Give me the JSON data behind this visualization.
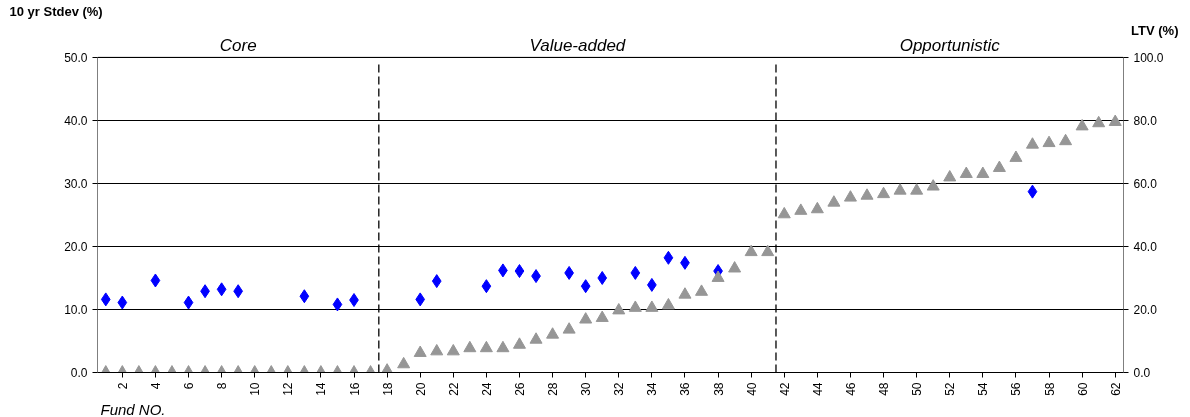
{
  "chart_data": {
    "type": "scatter",
    "ylabel": "10 yr Stdev (%)",
    "y2label": "LTV (%)",
    "xlabel": "Fund NO.",
    "annotations": [
      "Core",
      "Value-added",
      "Opportunistic"
    ],
    "x": [
      1,
      2,
      3,
      4,
      5,
      6,
      7,
      8,
      9,
      10,
      11,
      12,
      13,
      14,
      15,
      16,
      17,
      18,
      19,
      20,
      21,
      22,
      23,
      24,
      25,
      26,
      27,
      28,
      29,
      30,
      31,
      32,
      33,
      34,
      35,
      36,
      37,
      38,
      39,
      40,
      41,
      42,
      43,
      44,
      45,
      46,
      47,
      48,
      49,
      50,
      51,
      52,
      53,
      54,
      55,
      56,
      57,
      58,
      59,
      60,
      61,
      62
    ],
    "series": [
      {
        "color": "#0000ff",
        "marker": "diamond",
        "values": [
          11.6,
          11.1,
          null,
          14.6,
          null,
          11.1,
          12.9,
          13.2,
          12.9,
          null,
          null,
          null,
          12.1,
          null,
          10.8,
          11.5,
          null,
          null,
          null,
          11.6,
          14.5,
          null,
          null,
          13.7,
          16.2,
          16.1,
          15.3,
          null,
          15.8,
          13.7,
          15.0,
          null,
          15.8,
          13.9,
          18.2,
          17.4,
          null,
          16.1,
          null,
          null,
          null,
          null,
          null,
          null,
          null,
          null,
          null,
          null,
          null,
          null,
          null,
          null,
          null,
          null,
          null,
          null,
          28.7,
          null,
          null,
          null,
          null,
          null
        ]
      },
      {
        "color": "#969696",
        "marker": "triangle",
        "axis": "y2",
        "values": [
          0,
          0,
          0,
          0,
          0,
          0,
          0,
          0,
          0,
          0,
          0,
          0,
          0,
          0,
          0,
          0,
          0,
          0.6,
          2.6,
          6.2,
          6.7,
          6.7,
          7.7,
          7.7,
          7.7,
          8.8,
          10.4,
          12.0,
          13.6,
          16.8,
          17.3,
          19.7,
          20.5,
          20.5,
          21.3,
          24.7,
          25.6,
          30.0,
          33.0,
          38.2,
          38.2,
          50.2,
          51.3,
          51.8,
          53.9,
          55.5,
          56.1,
          56.6,
          57.7,
          57.7,
          59.0,
          61.9,
          63.0,
          63.0,
          64.9,
          68.1,
          72.3,
          72.8,
          73.4,
          78.1,
          79.1,
          79.5
        ]
      }
    ],
    "xlim": [
      0.5,
      62.5
    ],
    "xticks": [
      2,
      4,
      6,
      8,
      10,
      12,
      14,
      16,
      18,
      20,
      22,
      24,
      26,
      28,
      30,
      32,
      34,
      36,
      38,
      40,
      42,
      44,
      46,
      48,
      50,
      52,
      54,
      56,
      58,
      60,
      62
    ],
    "ylim": [
      0,
      50
    ],
    "yticks": [
      {
        "value": 0,
        "label": "0.0"
      },
      {
        "value": 10,
        "label": "10.0"
      },
      {
        "value": 20,
        "label": "20.0"
      },
      {
        "value": 30,
        "label": "30.0"
      },
      {
        "value": 40,
        "label": "40.0"
      },
      {
        "value": 50,
        "label": "50.0"
      }
    ],
    "y2lim": [
      0,
      100
    ],
    "y2ticks": [
      {
        "value": 0,
        "label": "0.0"
      },
      {
        "value": 20,
        "label": "20.0"
      },
      {
        "value": 40,
        "label": "40.0"
      },
      {
        "value": 60,
        "label": "60.0"
      },
      {
        "value": 80,
        "label": "80.0"
      },
      {
        "value": 100,
        "label": "100.0"
      }
    ],
    "ref_lines": [
      {
        "axis": "x",
        "value": 17.5,
        "line_style": "dashed",
        "color": "#000000"
      },
      {
        "axis": "x",
        "value": 41.5,
        "line_style": "dashed",
        "color": "#000000"
      }
    ],
    "grid": "y"
  }
}
